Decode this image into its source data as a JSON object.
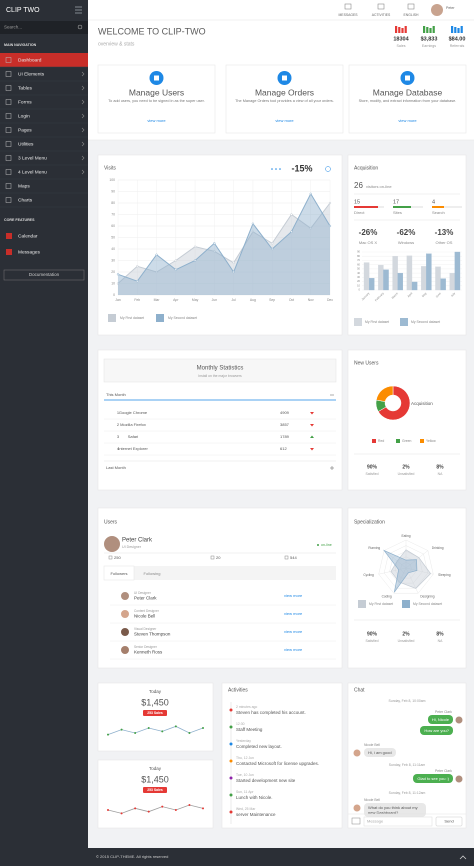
{
  "sidebar": {
    "brand": "CLIP TWO",
    "search": "Search...",
    "nav_heading": "MAIN NAVIGATION",
    "nav": [
      "Dashboard",
      "UI Elements",
      "Tables",
      "Forms",
      "Login",
      "Pages",
      "Utilities",
      "3 Level Menu",
      "4 Level Menu",
      "Maps",
      "Charts"
    ],
    "core_heading": "CORE FEATURES",
    "core": [
      "Calendar",
      "Messages"
    ],
    "documentation": "Documentation"
  },
  "topbar": {
    "items": [
      "MESSAGES",
      "ACTIVITIES",
      "ENGLISH"
    ],
    "user": "Peter"
  },
  "header": {
    "title": "WELCOME TO CLIP-TWO",
    "subtitle": "overview & stats",
    "stats": [
      {
        "value": "18304",
        "label": "Sales"
      },
      {
        "value": "$3,833",
        "label": "Earnings"
      },
      {
        "value": "$84.00",
        "label": "Referrals"
      }
    ]
  },
  "features": [
    {
      "title": "Manage Users",
      "text": "To add users, you need to be signed in as the super user.",
      "link": "view more"
    },
    {
      "title": "Manage Orders",
      "text": "The Manage Orders tool provides a view of all your orders.",
      "link": "view more"
    },
    {
      "title": "Manage Database",
      "text": "Store, modify, and extract information from your database.",
      "link": "view more"
    }
  ],
  "visits": {
    "title": "Visits",
    "change": "-15%",
    "chart": {
      "type": "line",
      "categories": [
        "Jan",
        "Feb",
        "Mar",
        "Apr",
        "May",
        "Jun",
        "Jul",
        "Aug",
        "Sep",
        "Oct",
        "Nov",
        "Dec"
      ],
      "ylim": [
        0,
        100
      ],
      "yticks": [
        0,
        10,
        20,
        30,
        40,
        50,
        60,
        70,
        80,
        90,
        100
      ],
      "grid": true,
      "series": [
        {
          "name": "My First dataset",
          "color": "#c5ccd4",
          "values": [
            10,
            25,
            20,
            30,
            42,
            38,
            28,
            55,
            45,
            70,
            58,
            80
          ]
        },
        {
          "name": "My Second dataset",
          "color": "#8eb0cc",
          "values": [
            18,
            12,
            35,
            22,
            30,
            45,
            20,
            62,
            40,
            55,
            88,
            60
          ]
        }
      ]
    }
  },
  "acquisition": {
    "title": "Acquisition",
    "visitors": 26,
    "visitors_label": "visitors on-line",
    "sources": [
      {
        "value": 15,
        "label": "Direct",
        "color": "#e53935"
      },
      {
        "value": 17,
        "label": "Sites",
        "color": "#43a047"
      },
      {
        "value": 4,
        "label": "Search",
        "color": "#fb8c00"
      }
    ],
    "os": [
      {
        "value": "-26%",
        "label": "Mac OS X"
      },
      {
        "value": "-62%",
        "label": "Windows"
      },
      {
        "value": "-13%",
        "label": "Other OS"
      }
    ],
    "chart": {
      "type": "bar",
      "categories": [
        "January",
        "February",
        "March",
        "April",
        "May",
        "June",
        "July"
      ],
      "ylim": [
        0,
        90
      ],
      "yticks": [
        0,
        10,
        20,
        30,
        40,
        50,
        60,
        70,
        80,
        90
      ],
      "series": [
        {
          "name": "My First dataset",
          "color": "#d3d8de",
          "values": [
            65,
            59,
            80,
            81,
            56,
            55,
            40
          ]
        },
        {
          "name": "My Second dataset",
          "color": "#9dbad2",
          "values": [
            28,
            48,
            40,
            19,
            86,
            27,
            90
          ]
        }
      ]
    }
  },
  "monthly": {
    "title": "Monthly Statistics",
    "subtitle": "Install on the major browsers",
    "this_month": "This Month",
    "last_month": "Last Month",
    "rows": [
      [
        "1",
        "Google Chrome",
        "4909"
      ],
      [
        "2",
        "Mozilla Firefox",
        "3857"
      ],
      [
        "3",
        "Safari",
        "1789"
      ],
      [
        "4",
        "Internet Explorer",
        "612"
      ]
    ]
  },
  "new_users": {
    "title": "New Users",
    "center_label": "Acquisition",
    "chart": {
      "type": "pie",
      "categories": [
        "Red",
        "Green",
        "Yellow"
      ],
      "values": [
        300,
        50,
        100
      ],
      "colors": [
        "#e53935",
        "#43a047",
        "#fb8c00"
      ]
    },
    "stats": [
      {
        "value": "90%",
        "label": "Satisfied"
      },
      {
        "value": "2%",
        "label": "Unsatisfied"
      },
      {
        "value": "8%",
        "label": "NA"
      }
    ]
  },
  "users": {
    "title": "Users",
    "name": "Peter Clark",
    "role": "UI Designer",
    "status": "on-line",
    "counts": [
      250,
      20,
      544
    ],
    "tabs": [
      "Followers",
      "Following"
    ],
    "list": [
      {
        "role": "UI Designer",
        "name": "Peter Clark",
        "link": "view more"
      },
      {
        "role": "Content Designer",
        "name": "Nicole Bell",
        "link": "view more"
      },
      {
        "role": "Visual Designer",
        "name": "Steven Thompson",
        "link": "view more"
      },
      {
        "role": "Senior Designer",
        "name": "Kenneth Ross",
        "link": "view more"
      }
    ]
  },
  "specialization": {
    "title": "Specialization",
    "chart": {
      "type": "radar",
      "categories": [
        "Eating",
        "Drinking",
        "Sleeping",
        "Designing",
        "Coding",
        "Cycling",
        "Running"
      ],
      "rlim": [
        0,
        100
      ],
      "series": [
        {
          "name": "My First dataset",
          "color": "#c5ccd4",
          "values": [
            65,
            59,
            90,
            81,
            56,
            55,
            40
          ]
        },
        {
          "name": "My Second dataset",
          "color": "#8eb0cc",
          "values": [
            28,
            48,
            40,
            19,
            96,
            27,
            100
          ]
        }
      ]
    },
    "stats": [
      {
        "value": "90%",
        "label": "Satisfied"
      },
      {
        "value": "2%",
        "label": "Unsatisfied"
      },
      {
        "value": "8%",
        "label": "NA"
      }
    ]
  },
  "today": [
    {
      "title": "Today",
      "value": "$1,450",
      "badge": "253 Sales",
      "chart": {
        "type": "line",
        "color": "#8eb0cc",
        "point_color": "#43a047",
        "ylim": [
          0,
          12
        ],
        "values": [
          5,
          8,
          6,
          9,
          7,
          10,
          6,
          9
        ]
      }
    },
    {
      "title": "Today",
      "value": "$1,450",
      "badge": "253 Sales",
      "chart": {
        "type": "line",
        "color": "#9e9e9e",
        "point_color": "#e53935",
        "ylim": [
          0,
          12
        ],
        "values": [
          6,
          4,
          7,
          5,
          8,
          6,
          9,
          7
        ]
      }
    }
  ],
  "activities": {
    "title": "Activities",
    "items": [
      {
        "time": "2 minutes ago",
        "text": "Steven has completed his account."
      },
      {
        "time": "12:30",
        "text": "Staff Meeting"
      },
      {
        "time": "Yesterday",
        "text": "Completed new layout."
      },
      {
        "time": "Thu, 12 Jun",
        "text": "Contacted Microsoft for license upgrades."
      },
      {
        "time": "Tue, 10 Jun",
        "text": "Started development new site"
      },
      {
        "time": "Sun, 11 Apr",
        "text": "Lunch with Nicole."
      },
      {
        "time": "Wed, 25 Mar",
        "text": "server Maintenance"
      }
    ]
  },
  "chat": {
    "title": "Chat",
    "items": [
      {
        "time": "Sunday, Feb 8, 10:00am"
      },
      {
        "author": "Peter Clark",
        "messages": [
          "Hi, Nicole",
          "How are you?"
        ]
      },
      {
        "author": "Nicole Bell",
        "messages": [
          "Hi, i am good"
        ]
      },
      {
        "time": "Sunday, Feb 8, 11:11am"
      },
      {
        "author": "Peter Clark",
        "messages": [
          "Glad to see you :)"
        ]
      },
      {
        "time": "Sunday, Feb 8, 11:12am"
      },
      {
        "author": "Nicole Bell",
        "messages": [
          "What do you think about my new Dashboard?"
        ]
      }
    ],
    "placeholder": "Message",
    "send": "Send"
  },
  "footer": "© 2015 CLIP-THEME. All rights reserved"
}
